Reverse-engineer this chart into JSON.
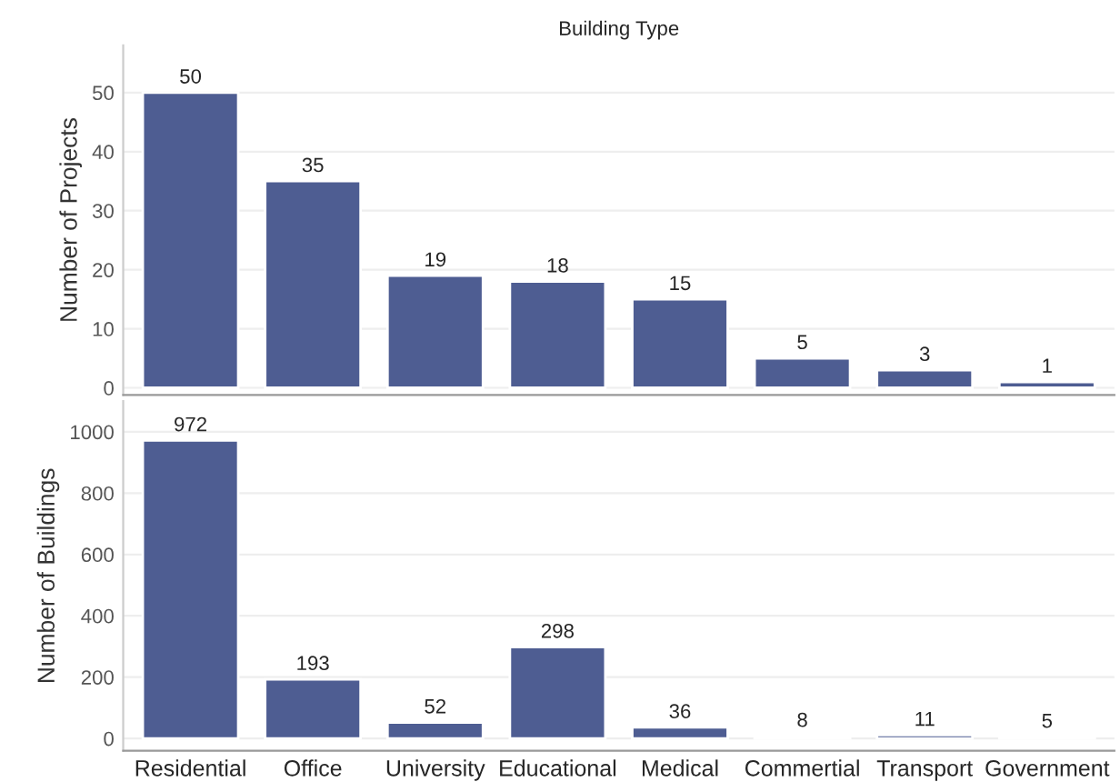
{
  "chart_data": [
    {
      "type": "bar",
      "title": "Building Type",
      "ylabel": "Number of Projects",
      "categories": [
        null,
        null,
        null,
        null,
        null,
        null,
        null,
        null
      ],
      "values": [
        50,
        35,
        19,
        18,
        15,
        5,
        3,
        1
      ],
      "color": "#4e5d92",
      "ylim": [
        -1.2,
        58
      ],
      "yticks": [
        0,
        10,
        20,
        30,
        40,
        50
      ],
      "grid": "y",
      "data_labels": true,
      "tick_labels": "y"
    },
    {
      "type": "bar",
      "ylabel": "Number of Buildings",
      "categories": [
        "Residential",
        "Office",
        "University",
        "Educational",
        "Medical",
        "Commertial",
        "Transport",
        "Government"
      ],
      "values": [
        972,
        193,
        52,
        298,
        36,
        8,
        11,
        5
      ],
      "color": "#4e5d92",
      "ylim": [
        -40,
        1100
      ],
      "yticks": [
        0,
        200,
        400,
        600,
        800,
        1000
      ],
      "grid": "y",
      "data_labels": true
    }
  ]
}
